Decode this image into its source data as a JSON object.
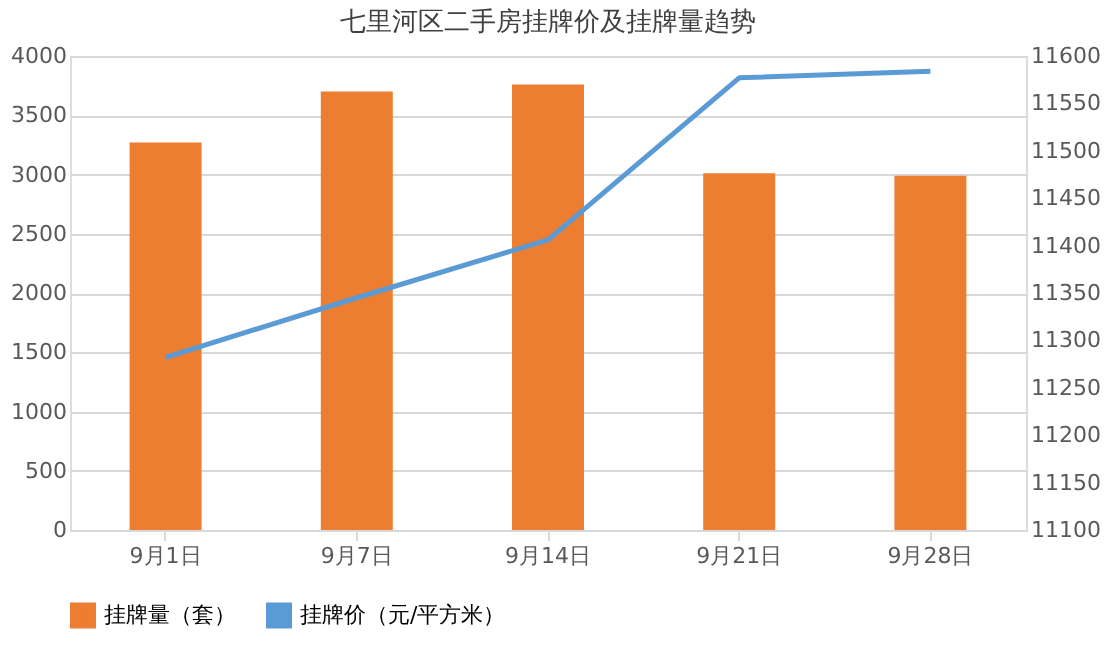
{
  "chart_data": {
    "type": "bar",
    "title": "七里河区二手房挂牌价及挂牌量趋势",
    "categories": [
      "9月1日",
      "9月7日",
      "9月14日",
      "9月21日",
      "9月28日"
    ],
    "series": [
      {
        "name": "挂牌量（套）",
        "color": "#ed7d31",
        "values": [
          3270,
          3700,
          3760,
          3010,
          2990
        ]
      },
      {
        "name": "挂牌价（元/平方米）",
        "type": "line",
        "axis": "y2",
        "color": "#5b9bd5",
        "values": [
          11282,
          11345,
          11406,
          11577,
          11584
        ]
      }
    ],
    "ylim": [
      0,
      4000
    ],
    "yticks": [
      0,
      500,
      1000,
      1500,
      2000,
      2500,
      3000,
      3500,
      4000
    ],
    "y2lim": [
      11100,
      11600
    ],
    "y2ticks": [
      11100,
      11150,
      11200,
      11250,
      11300,
      11350,
      11400,
      11450,
      11500,
      11550,
      11600
    ],
    "grid": "y",
    "legend": "bottom",
    "marker": "none"
  }
}
